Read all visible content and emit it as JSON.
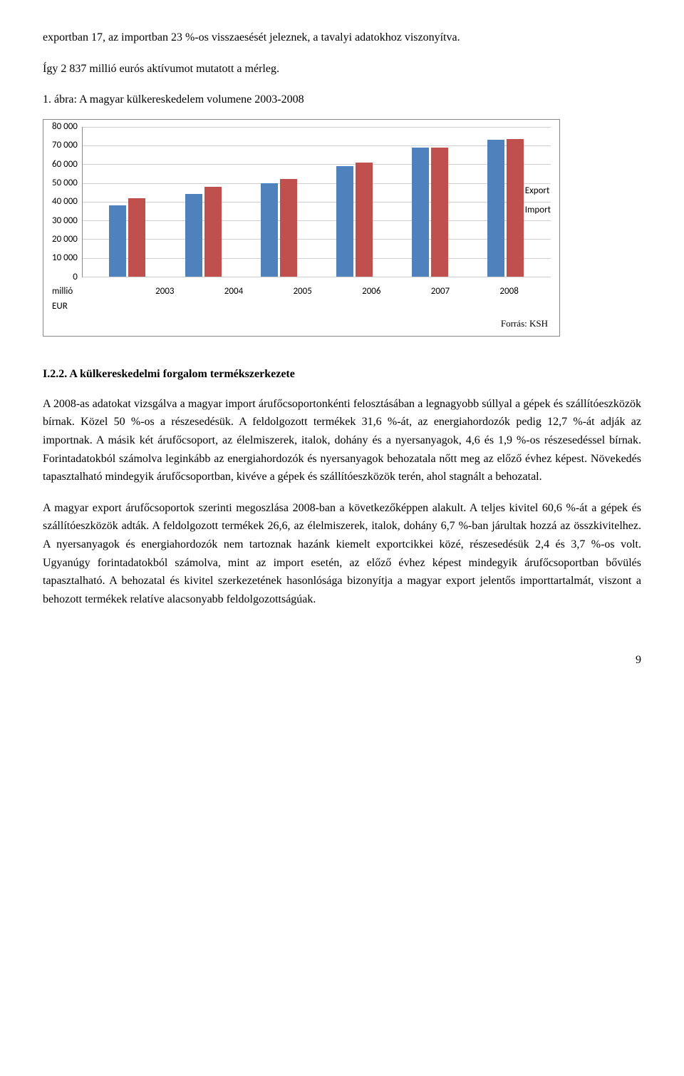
{
  "intro": {
    "line1": "exportban 17, az importban 23 %-os visszaesését jeleznek, a tavalyi adatokhoz viszonyítva.",
    "line2": "Így 2 837 millió eurós aktívumot mutatott a mérleg.",
    "chart_title": "1. ábra: A magyar külkereskedelem volumene 2003-2008"
  },
  "chart": {
    "type": "bar",
    "categories": [
      "2003",
      "2004",
      "2005",
      "2006",
      "2007",
      "2008"
    ],
    "series": [
      {
        "name": "Export",
        "color": "#4f81bd",
        "values": [
          38000,
          44000,
          50000,
          59000,
          69000,
          73000
        ]
      },
      {
        "name": "Import",
        "color": "#c0504d",
        "values": [
          42000,
          48000,
          52000,
          61000,
          69000,
          73500
        ]
      }
    ],
    "y_ticks": [
      "80 000",
      "70 000",
      "60 000",
      "50 000",
      "40 000",
      "30 000",
      "20 000",
      "10 000",
      "0"
    ],
    "y_max": 80000,
    "axis_unit": "millió EUR",
    "grid_color": "#d0d0d0",
    "source": "Forrás: KSH"
  },
  "section": {
    "heading": "I.2.2. A külkereskedelmi forgalom termékszerkezete",
    "p1": "A 2008-as adatokat vizsgálva a magyar import árufőcsoportonkénti felosztásában a legnagyobb súllyal a gépek és szállítóeszközök bírnak. Közel 50 %-os a részesedésük. A feldolgozott termékek 31,6 %-át, az energiahordozók pedig 12,7 %-át adják az importnak. A másik két árufőcsoport, az élelmiszerek, italok, dohány és a nyersanyagok, 4,6 és 1,9 %-os részesedéssel bírnak. Forintadatokból számolva leginkább az energiahordozók és nyersanyagok behozatala nőtt meg az előző évhez képest. Növekedés tapasztalható mindegyik árufőcsoportban, kivéve a gépek és szállítóeszközök terén, ahol stagnált a behozatal.",
    "p2": "A magyar export árufőcsoportok szerinti megoszlása 2008-ban a következőképpen alakult. A teljes kivitel 60,6 %-át a gépek és szállítóeszközök adták. A feldolgozott termékek 26,6, az élelmiszerek, italok, dohány 6,7 %-ban járultak hozzá az összkivitelhez. A nyersanyagok és energiahordozók nem tartoznak hazánk kiemelt exportcikkei közé, részesedésük 2,4 és 3,7 %-os volt. Ugyanúgy forintadatokból számolva, mint az import esetén, az előző évhez képest mindegyik árufőcsoportban bővülés tapasztalható. A behozatal és kivitel szerkezetének hasonlósága bizonyítja a magyar export jelentős importtartalmát, viszont a behozott termékek relatíve alacsonyabb feldolgozottságúak."
  },
  "page_number": "9"
}
